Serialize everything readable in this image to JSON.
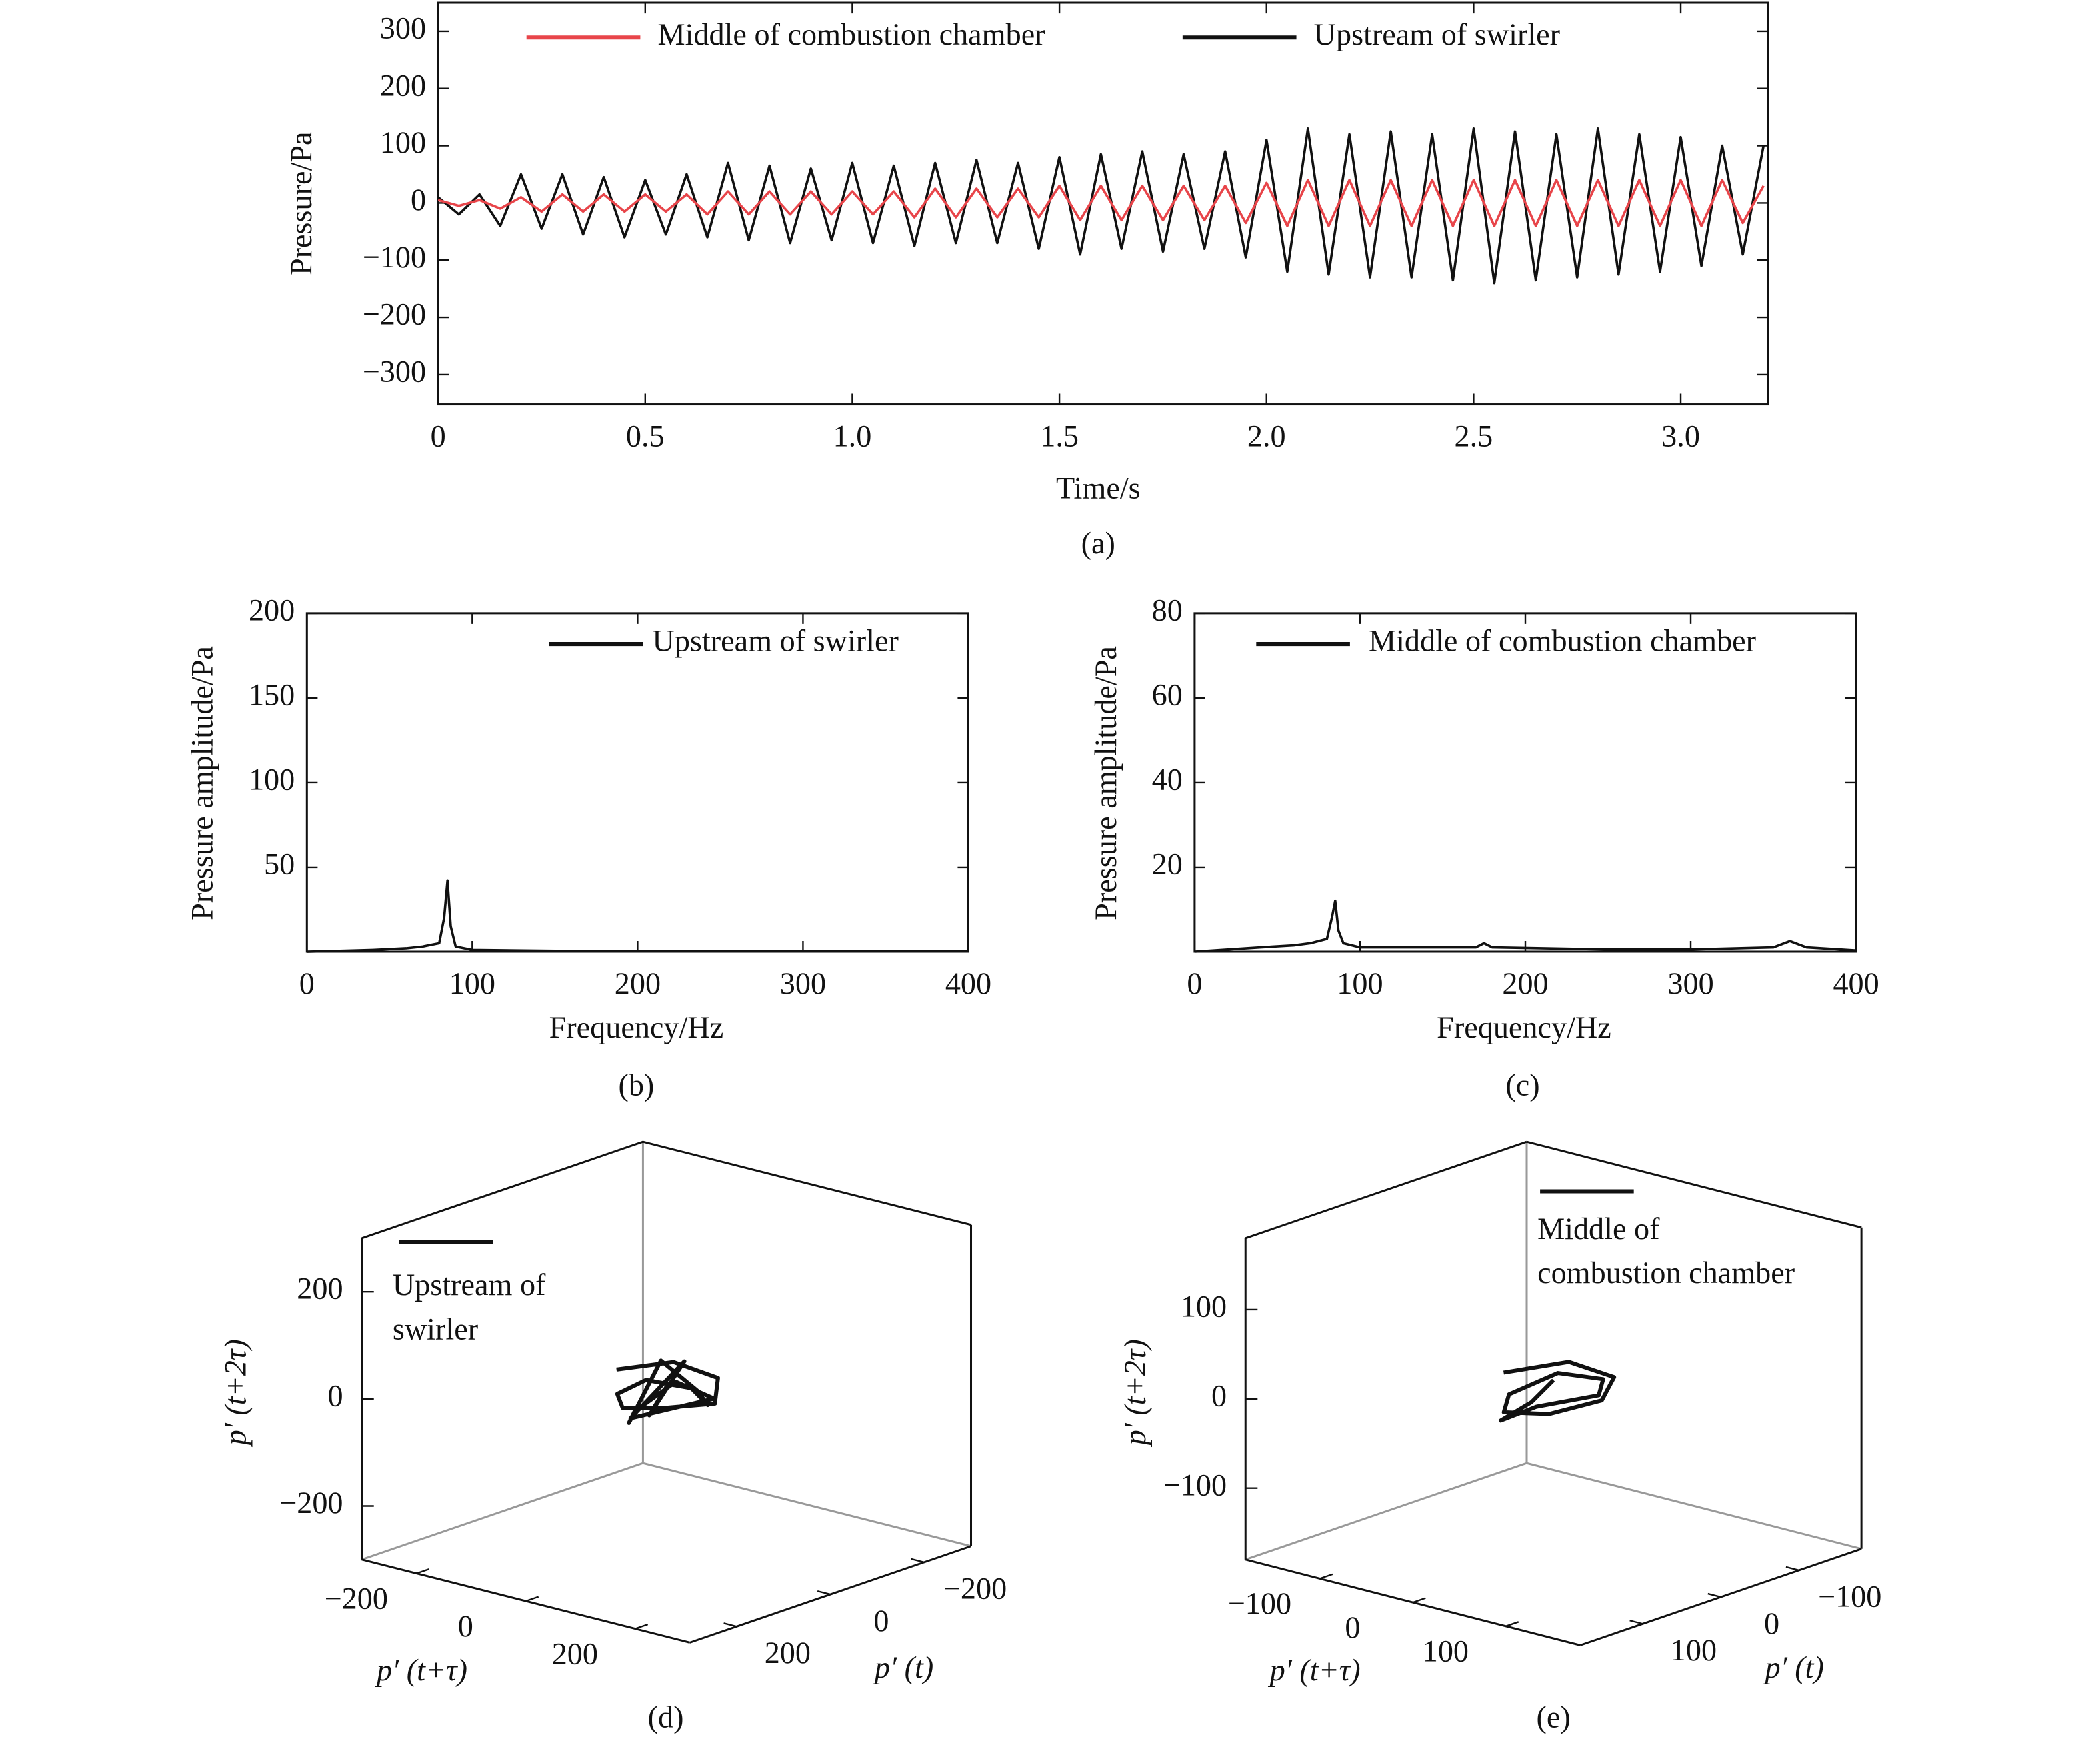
{
  "chart_data": [
    {
      "type": "line",
      "caption": "(a)",
      "x_label": "Time/s",
      "y_label": "Pressure/Pa",
      "xlim": [
        0,
        3.21
      ],
      "ylim": [
        -352,
        350
      ],
      "xticks": [
        0,
        0.5,
        {
          "value": 1,
          "label": "1.0"
        },
        1.5,
        {
          "value": 2,
          "label": "2.0"
        },
        2.5,
        {
          "value": 3,
          "label": "3.0"
        }
      ],
      "yticks": [
        {
          "value": -300,
          "label": "−300"
        },
        {
          "value": -200,
          "label": "−200"
        },
        {
          "value": -100,
          "label": "−100"
        },
        0,
        100,
        200,
        300
      ],
      "x": [
        0,
        0.05,
        0.1,
        0.15,
        0.2,
        0.25,
        0.3,
        0.35,
        0.4,
        0.45,
        0.5,
        0.55,
        0.6,
        0.65,
        0.7,
        0.75,
        0.8,
        0.85,
        0.9,
        0.95,
        1,
        1.05,
        1.1,
        1.15,
        1.2,
        1.25,
        1.3,
        1.35,
        1.4,
        1.45,
        1.5,
        1.55,
        1.6,
        1.65,
        1.7,
        1.75,
        1.8,
        1.85,
        1.9,
        1.95,
        2,
        2.05,
        2.1,
        2.15,
        2.2,
        2.25,
        2.3,
        2.35,
        2.4,
        2.45,
        2.5,
        2.55,
        2.6,
        2.65,
        2.7,
        2.75,
        2.8,
        2.85,
        2.9,
        2.95,
        3,
        3.05,
        3.1,
        3.15,
        3.2
      ],
      "series": [
        {
          "name": "Middle of combustion chamber",
          "color": "#e8454a",
          "values": [
            5,
            -5,
            5,
            -10,
            10,
            -15,
            15,
            -15,
            15,
            -15,
            15,
            -15,
            15,
            -20,
            20,
            -20,
            20,
            -20,
            20,
            -20,
            20,
            -20,
            20,
            -25,
            25,
            -25,
            25,
            -25,
            25,
            -25,
            30,
            -30,
            30,
            -30,
            30,
            -30,
            30,
            -30,
            30,
            -35,
            35,
            -40,
            40,
            -40,
            40,
            -40,
            40,
            -40,
            40,
            -40,
            40,
            -40,
            40,
            -40,
            40,
            -40,
            40,
            -40,
            40,
            -40,
            40,
            -40,
            40,
            -35,
            30
          ]
        },
        {
          "name": "Upstream of swirler",
          "color": "#111111",
          "values": [
            10,
            -20,
            15,
            -40,
            50,
            -45,
            50,
            -55,
            45,
            -60,
            40,
            -55,
            50,
            -60,
            70,
            -65,
            65,
            -70,
            60,
            -65,
            70,
            -70,
            65,
            -75,
            70,
            -70,
            75,
            -70,
            70,
            -80,
            80,
            -90,
            85,
            -80,
            90,
            -85,
            85,
            -80,
            90,
            -95,
            110,
            -120,
            130,
            -125,
            120,
            -130,
            125,
            -130,
            120,
            -135,
            130,
            -140,
            125,
            -135,
            120,
            -130,
            130,
            -125,
            120,
            -120,
            115,
            -110,
            100,
            -90,
            100
          ]
        }
      ]
    },
    {
      "type": "line",
      "caption": "(b)",
      "x_label": "Frequency/Hz",
      "y_label": "Pressure amplitude/Pa",
      "xlim": [
        0,
        400
      ],
      "ylim": [
        0,
        200
      ],
      "xticks": [
        0,
        100,
        200,
        300,
        400
      ],
      "yticks": [
        50,
        100,
        150,
        200
      ],
      "x": [
        0,
        20,
        40,
        60,
        70,
        80,
        83,
        85,
        87,
        90,
        100,
        150,
        200,
        250,
        300,
        350,
        400
      ],
      "series": [
        {
          "name": "Upstream of swirler",
          "color": "#111111",
          "values": [
            0,
            0.5,
            1,
            2,
            3,
            5,
            20,
            42,
            15,
            3,
            1,
            0.5,
            0.5,
            0.5,
            0.3,
            0.5,
            0.3
          ]
        }
      ]
    },
    {
      "type": "line",
      "caption": "(c)",
      "x_label": "Frequency/Hz",
      "y_label": "Pressure amplitude/Pa",
      "xlim": [
        0,
        400
      ],
      "ylim": [
        0,
        80
      ],
      "xticks": [
        0,
        100,
        200,
        300,
        400
      ],
      "yticks": [
        20,
        40,
        60,
        80
      ],
      "x": [
        0,
        20,
        40,
        60,
        70,
        80,
        83,
        85,
        87,
        90,
        100,
        150,
        170,
        175,
        180,
        250,
        300,
        350,
        360,
        370,
        400
      ],
      "series": [
        {
          "name": "Middle of combustion chamber",
          "color": "#111111",
          "values": [
            0,
            0.5,
            1,
            1.5,
            2,
            3,
            8,
            12,
            5,
            2,
            1,
            1,
            1,
            2,
            1,
            0.5,
            0.5,
            1,
            2.5,
            1,
            0.3
          ]
        }
      ]
    },
    {
      "type": "phase3d",
      "caption": "(d)",
      "x_label": "p′ (t)",
      "y_label": "p′ (t+τ)",
      "z_label": "p′ (t+2τ)",
      "xlim": [
        -300,
        300
      ],
      "ylim": [
        -300,
        300
      ],
      "zlim": [
        -300,
        300
      ],
      "xticks": [
        {
          "value": -200,
          "label": "−200"
        },
        0,
        200
      ],
      "yticks": [
        {
          "value": -200,
          "label": "−200"
        },
        0,
        200
      ],
      "zticks": [
        {
          "value": -200,
          "label": "−200"
        },
        0,
        200
      ],
      "series": [
        {
          "name": "Upstream of swirler",
          "color": "#111111",
          "x": [
            60,
            20,
            -40,
            -80,
            -60,
            0,
            70,
            90,
            40,
            -30,
            -90,
            -70,
            10,
            80,
            50,
            -20,
            30,
            -50,
            60,
            0
          ],
          "y": [
            -40,
            30,
            60,
            20,
            -50,
            -80,
            -30,
            40,
            80,
            50,
            -20,
            -70,
            -60,
            10,
            60,
            70,
            -40,
            -10,
            20,
            0
          ],
          "z": [
            50,
            70,
            30,
            -40,
            -60,
            -50,
            10,
            60,
            40,
            -20,
            -30,
            20,
            -70,
            -10,
            50,
            0,
            -50,
            40,
            -20,
            10
          ]
        }
      ]
    },
    {
      "type": "phase3d",
      "caption": "(e)",
      "x_label": "p′ (t)",
      "y_label": "p′ (t+τ)",
      "z_label": "p′ (t+2τ)",
      "xlim": [
        -180,
        180
      ],
      "ylim": [
        -180,
        180
      ],
      "zlim": [
        -180,
        180
      ],
      "xticks": [
        {
          "value": -100,
          "label": "−100"
        },
        0,
        100
      ],
      "yticks": [
        {
          "value": -100,
          "label": "−100"
        },
        0,
        100
      ],
      "zticks": [
        {
          "value": -100,
          "label": "−100"
        },
        0,
        100
      ],
      "series": [
        {
          "name": "Middle of combustion chamber",
          "color": "#111111",
          "x": [
            40,
            10,
            -30,
            -50,
            -30,
            10,
            45,
            30,
            -10,
            -40,
            -20,
            20,
            40,
            0
          ],
          "y": [
            -20,
            25,
            40,
            10,
            -30,
            -45,
            -10,
            30,
            45,
            15,
            -35,
            -40,
            10,
            0
          ],
          "z": [
            30,
            45,
            20,
            -20,
            -40,
            -30,
            10,
            40,
            25,
            -10,
            -30,
            -35,
            5,
            15
          ]
        }
      ]
    }
  ]
}
